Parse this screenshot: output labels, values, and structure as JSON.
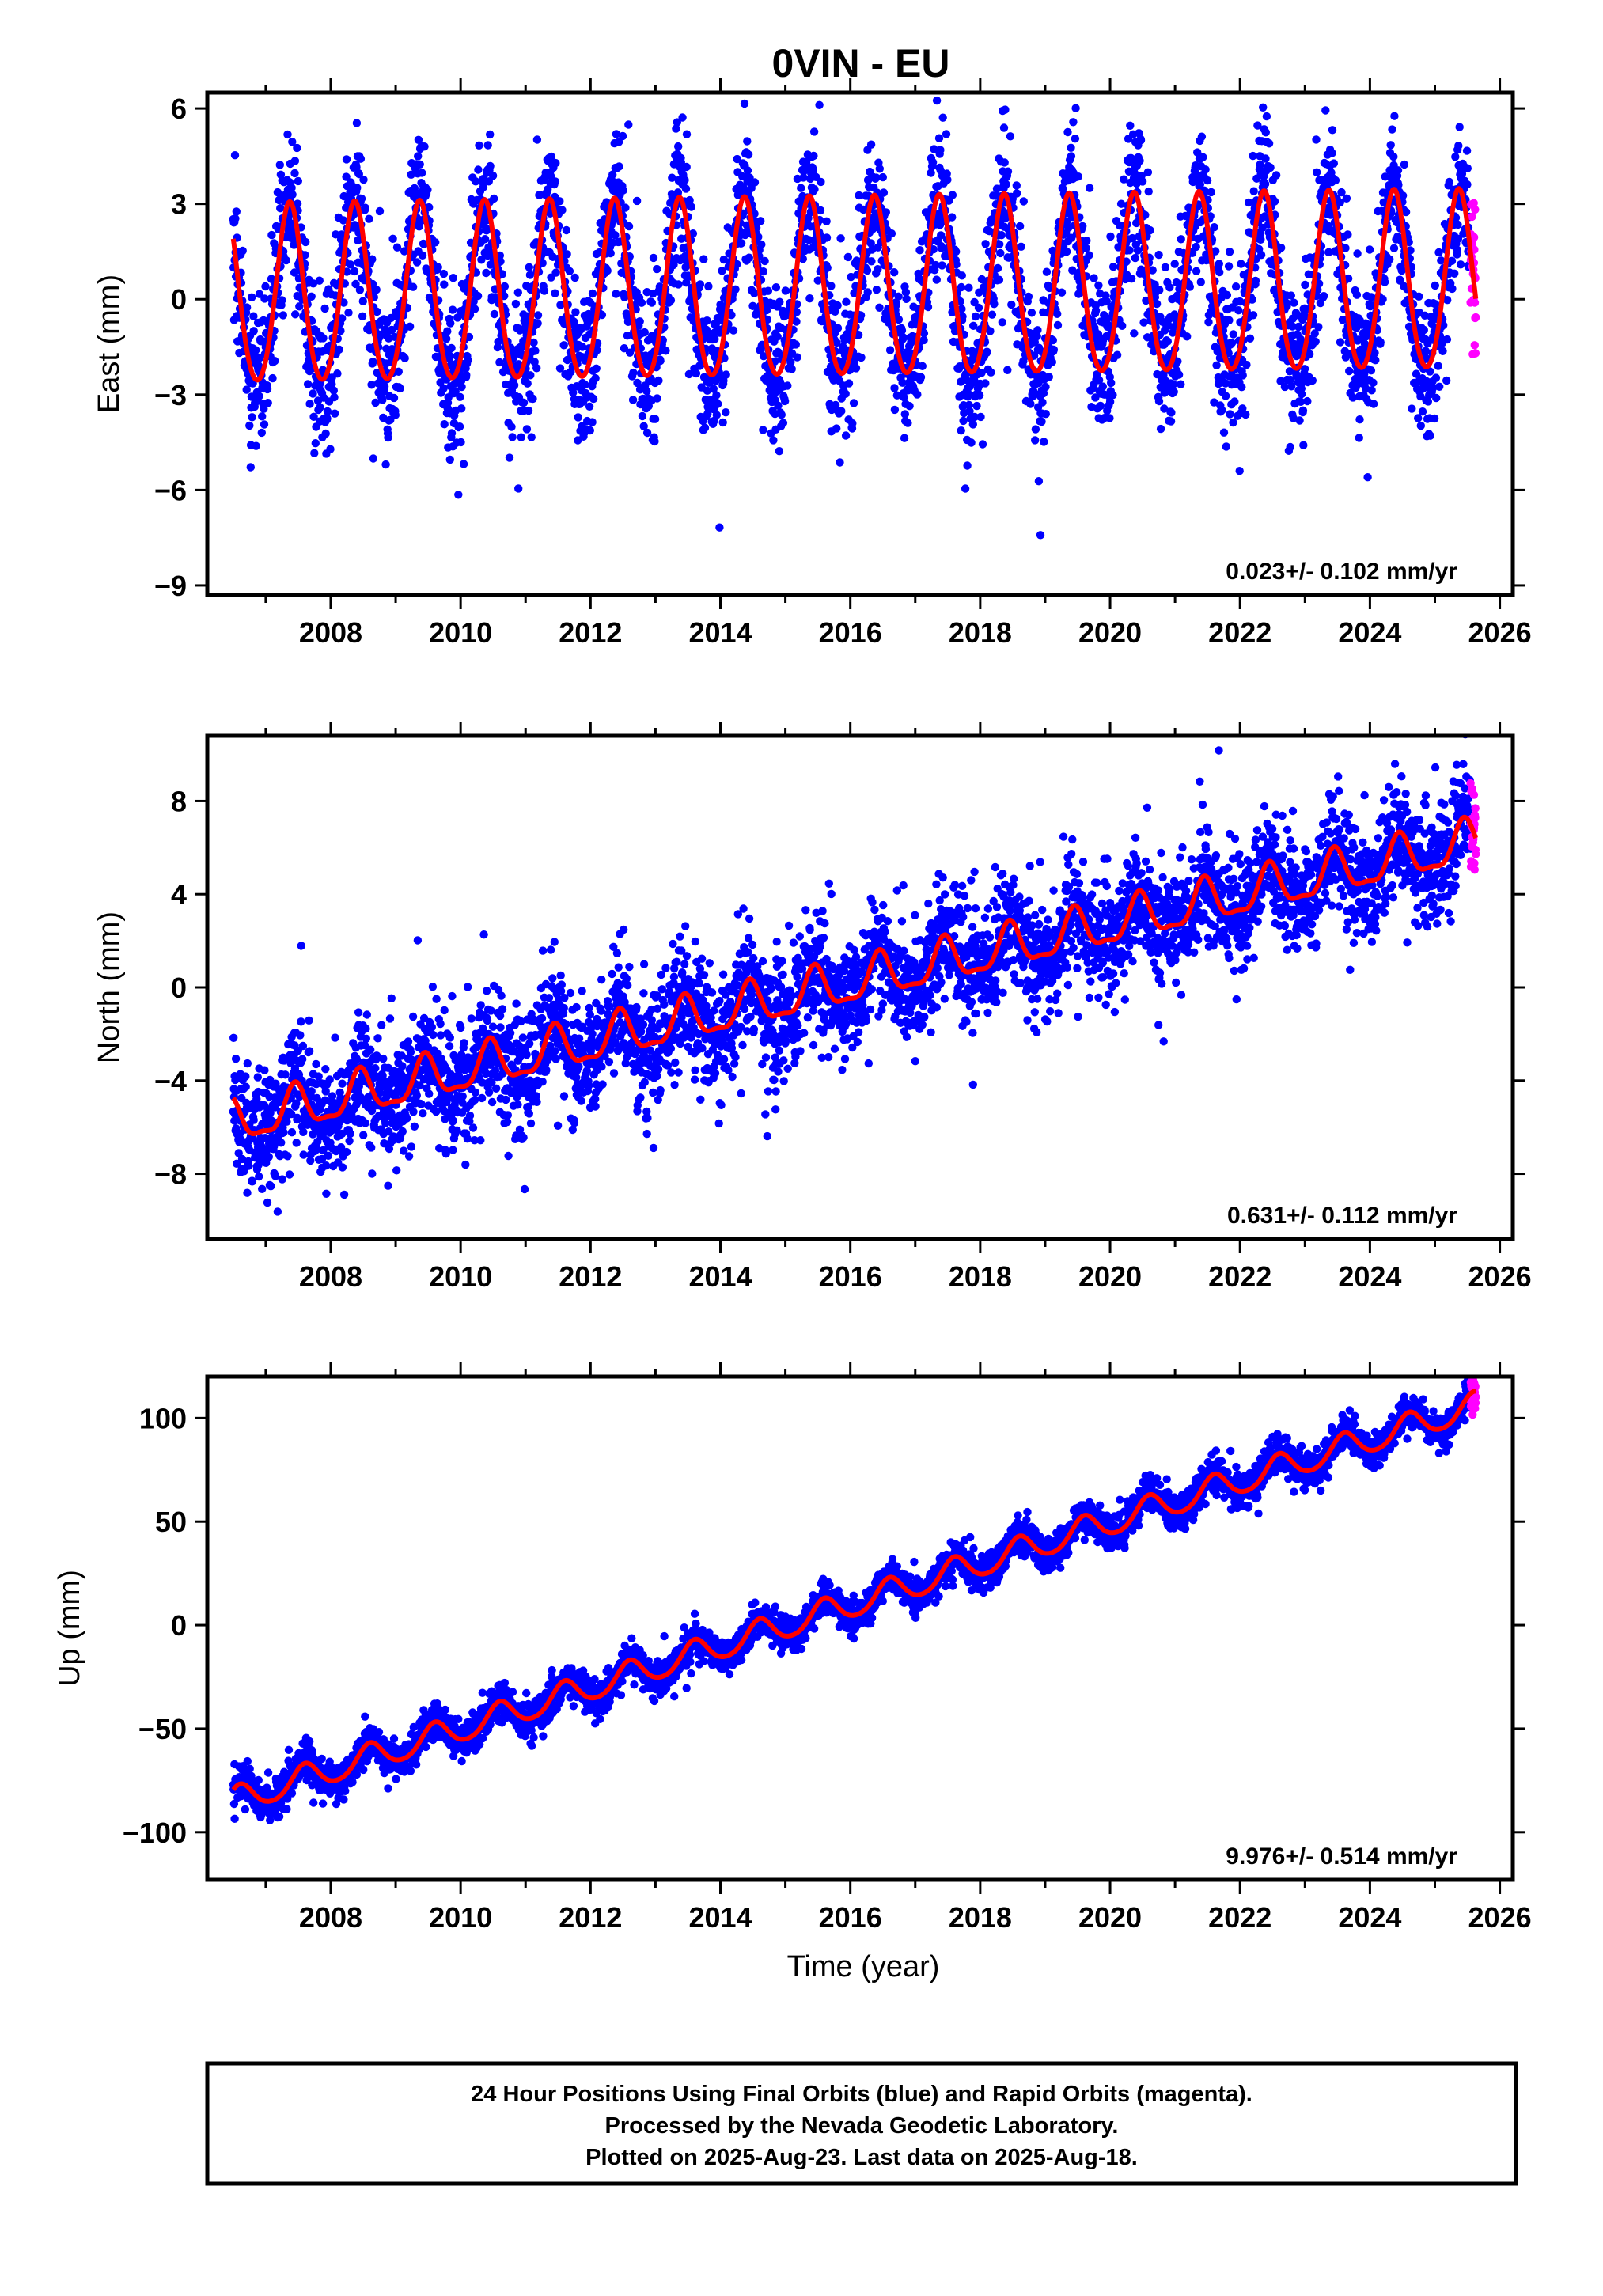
{
  "title": "0VIN - EU",
  "xlabel": "Time (year)",
  "footer": [
    "24 Hour Positions Using Final Orbits (blue) and Rapid Orbits (magenta).",
    "Processed by the Nevada Geodetic Laboratory.",
    "Plotted on 2025-Aug-23. Last data on 2025-Aug-18."
  ],
  "colors": {
    "final": "#0000ff",
    "rapid": "#ff00ff",
    "model": "#ff0000"
  },
  "chart_data": [
    {
      "type": "scatter",
      "ylabel": "East (mm)",
      "rate_label": "0.023+/- 0.102 mm/yr",
      "xlim": [
        2006.1,
        2026.2
      ],
      "ylim": [
        -9.3,
        6.5
      ],
      "xticks": [
        2008,
        2010,
        2012,
        2014,
        2016,
        2018,
        2020,
        2022,
        2024,
        2026
      ],
      "yticks": [
        6,
        3,
        0,
        -3,
        -6,
        -9
      ],
      "ytick_labels": [
        "6",
        "3",
        "0",
        "−3",
        "−6",
        "−9"
      ],
      "model": {
        "start": 2006.5,
        "end": 2025.63,
        "offset_mm": 0.0,
        "rate_mm_yr": 0.023,
        "annual_amp_mm": 2.8,
        "annual_peak": 2006.37,
        "semiannual_amp_mm": 0.25
      },
      "scatter": {
        "noise_mm": 1.1,
        "extra_spread_mm": 0.6
      },
      "series": [
        {
          "name": "Final Orbits",
          "color": "#0000ff",
          "x_range": [
            2006.5,
            2025.55
          ]
        },
        {
          "name": "Rapid Orbits",
          "color": "#ff00ff",
          "x_range": [
            2025.55,
            2025.63
          ]
        }
      ]
    },
    {
      "type": "scatter",
      "ylabel": "North (mm)",
      "rate_label": "0.631+/- 0.112 mm/yr",
      "xlim": [
        2006.1,
        2026.2
      ],
      "ylim": [
        -10.8,
        10.8
      ],
      "xticks": [
        2008,
        2010,
        2012,
        2014,
        2016,
        2018,
        2020,
        2022,
        2024,
        2026
      ],
      "yticks": [
        8,
        4,
        0,
        -4,
        -8
      ],
      "ytick_labels": [
        "8",
        "4",
        "0",
        "−4",
        "−8"
      ],
      "model": {
        "start": 2006.5,
        "end": 2025.63,
        "offset_mm": -5.85,
        "rate_mm_yr": 0.631,
        "annual_amp_mm": 0.9,
        "annual_peak": 2006.45,
        "semiannual_amp_mm": 0.3
      },
      "scatter": {
        "noise_mm": 1.15,
        "extra_spread_mm": 0.8
      },
      "series": [
        {
          "name": "Final Orbits",
          "color": "#0000ff",
          "x_range": [
            2006.5,
            2025.55
          ]
        },
        {
          "name": "Rapid Orbits",
          "color": "#ff00ff",
          "x_range": [
            2025.55,
            2025.63
          ]
        }
      ]
    },
    {
      "type": "scatter",
      "ylabel": "Up (mm)",
      "rate_label": "9.976+/- 0.514 mm/yr",
      "xlim": [
        2006.1,
        2026.2
      ],
      "ylim": [
        -123,
        120
      ],
      "xticks": [
        2008,
        2010,
        2012,
        2014,
        2016,
        2018,
        2020,
        2022,
        2024,
        2026
      ],
      "yticks": [
        100,
        50,
        0,
        -50,
        -100
      ],
      "ytick_labels": [
        "100",
        "50",
        "0",
        "−50",
        "−100"
      ],
      "model": {
        "start": 2006.5,
        "end": 2025.63,
        "offset_mm": -85.0,
        "rate_mm_yr": 9.976,
        "annual_amp_mm": 6.5,
        "annual_peak": 2006.6,
        "semiannual_amp_mm": 0.8
      },
      "scatter": {
        "noise_mm": 4.0,
        "extra_spread_mm": 2.5
      },
      "series": [
        {
          "name": "Final Orbits",
          "color": "#0000ff",
          "x_range": [
            2006.5,
            2025.55
          ]
        },
        {
          "name": "Rapid Orbits",
          "color": "#ff00ff",
          "x_range": [
            2025.55,
            2025.63
          ]
        }
      ]
    }
  ]
}
